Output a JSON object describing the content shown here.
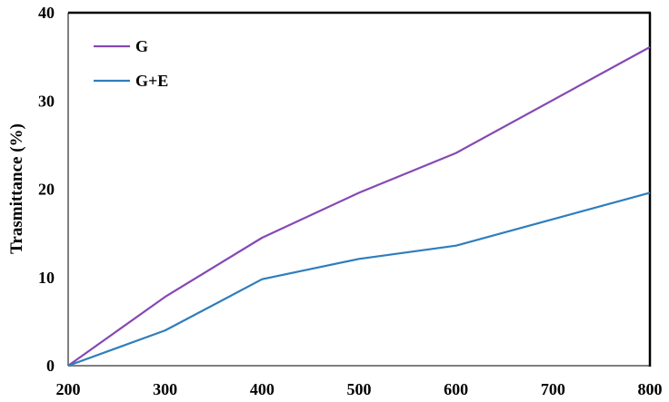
{
  "chart_data": {
    "type": "line",
    "title": "",
    "xlabel": "",
    "ylabel": "Trasmittance (%)",
    "x": [
      200,
      300,
      400,
      500,
      600,
      800
    ],
    "xticks": [
      "200",
      "300",
      "400",
      "500",
      "600",
      "700",
      "800"
    ],
    "yticks": [
      "0",
      "10",
      "20",
      "30",
      "40"
    ],
    "xlim": [
      200,
      800
    ],
    "ylim": [
      0,
      40
    ],
    "grid": false,
    "legend_position": "upper-left-inside",
    "series": [
      {
        "name": "G",
        "color": "#8548b4",
        "values": [
          0,
          7.8,
          14.5,
          19.6,
          24.1,
          36.1
        ]
      },
      {
        "name": "G+E",
        "color": "#2e7dbd",
        "values": [
          0,
          4.0,
          9.8,
          12.1,
          13.6,
          19.6
        ]
      }
    ]
  }
}
